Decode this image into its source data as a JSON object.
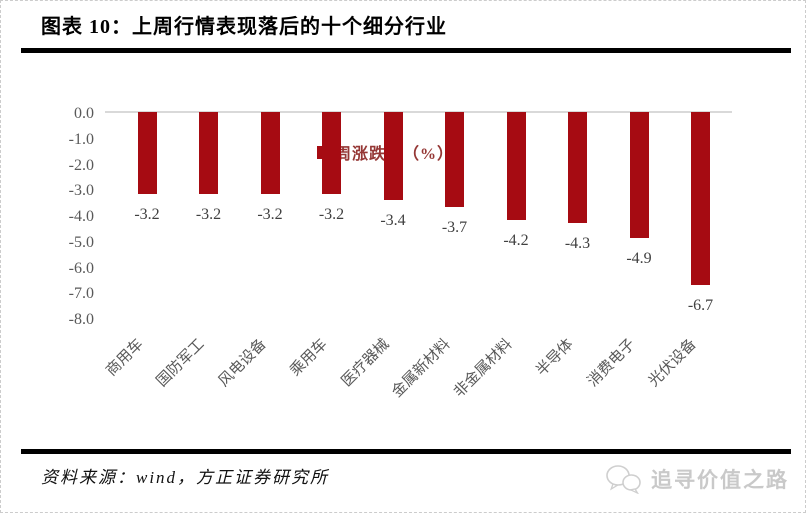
{
  "title": "图表 10：上周行情表现落后的十个细分行业",
  "legend": {
    "label": "周涨跌幅（%）"
  },
  "source": "资料来源：wind，方正证券研究所",
  "watermark": {
    "label": "追寻价值之路",
    "icon": "wechat-icon"
  },
  "colors": {
    "bar": "#a60b12",
    "legend_text": "#953735",
    "axis_line": "#d9d9d9",
    "tick_label": "#595959",
    "value_label": "#404040",
    "watermark": "#c9c9c9"
  },
  "chart_data": {
    "type": "bar",
    "title": "周涨跌幅（%）",
    "categories": [
      "商用车",
      "国防军工",
      "风电设备",
      "乘用车",
      "医疗器械",
      "金属新材料",
      "非金属材料",
      "半导体",
      "消费电子",
      "光伏设备"
    ],
    "values": [
      -3.2,
      -3.2,
      -3.2,
      -3.2,
      -3.4,
      -3.7,
      -4.2,
      -4.3,
      -4.9,
      -6.7
    ],
    "value_labels": [
      "-3.2",
      "-3.2",
      "-3.2",
      "-3.2",
      "-3.4",
      "-3.7",
      "-4.2",
      "-4.3",
      "-4.9",
      "-6.7"
    ],
    "ylim": [
      -8.0,
      0.0
    ],
    "ytick_labels": [
      "0.0",
      "-1.0",
      "-2.0",
      "-3.0",
      "-4.0",
      "-5.0",
      "-6.0",
      "-7.0",
      "-8.0"
    ],
    "grid": false,
    "legend_position": "top-center"
  }
}
